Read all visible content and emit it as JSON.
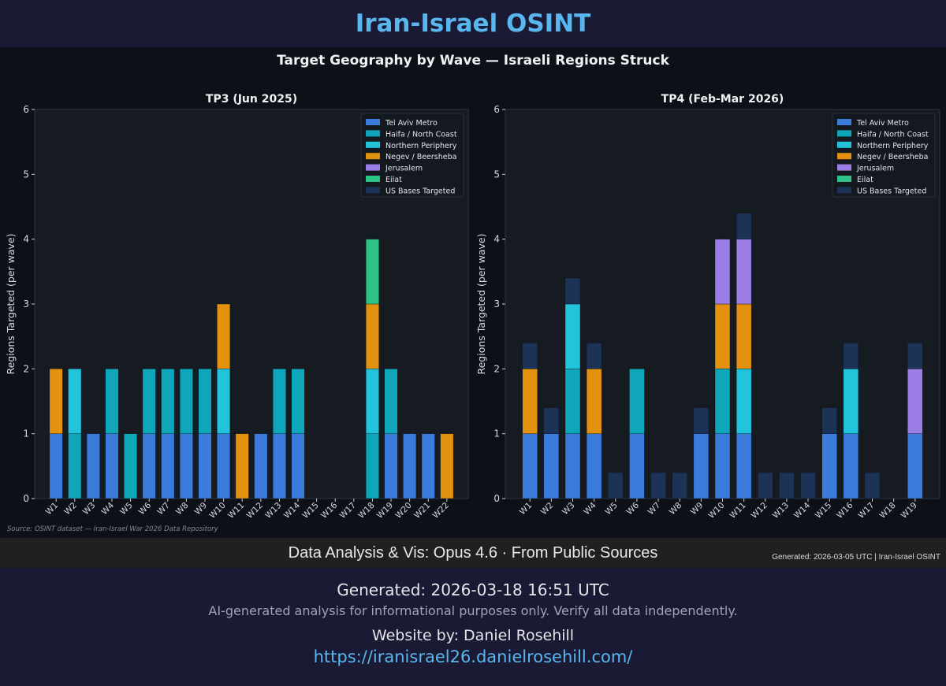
{
  "site_title": "Iran-Israel OSINT",
  "chart_data": {
    "type": "bar",
    "stacked": true,
    "suptitle": "Target Geography by Wave — Israeli Regions Struck",
    "ylabel": "Regions Targeted (per wave)",
    "ylim": [
      0,
      6
    ],
    "yticks": [
      "0",
      "1",
      "2",
      "3",
      "4",
      "5",
      "6"
    ],
    "source": "Source: OSINT dataset — Iran-Israel War 2026 Data Repository",
    "legend_position": "top-right",
    "legend": [
      {
        "name": "Tel Aviv Metro",
        "color": "#3a7bdc"
      },
      {
        "name": "Haifa / North Coast",
        "color": "#0fa6ba"
      },
      {
        "name": "Northern Periphery",
        "color": "#22c4dc"
      },
      {
        "name": "Negev / Beersheba",
        "color": "#e2920f"
      },
      {
        "name": "Jerusalem",
        "color": "#9b7ee6"
      },
      {
        "name": "Eilat",
        "color": "#2ec287"
      },
      {
        "name": "US Bases Targeted",
        "color": "#1c3357"
      }
    ],
    "panels": [
      {
        "title": "TP3 (Jun 2025)",
        "categories": [
          "W1",
          "W2",
          "W3",
          "W4",
          "W5",
          "W6",
          "W7",
          "W8",
          "W9",
          "W10",
          "W11",
          "W12",
          "W13",
          "W14",
          "W15",
          "W16",
          "W17",
          "W18",
          "W19",
          "W20",
          "W21",
          "W22"
        ],
        "series": [
          {
            "name": "Tel Aviv Metro",
            "values": [
              1,
              0,
              1,
              1,
              0,
              1,
              1,
              1,
              1,
              1,
              0,
              1,
              1,
              1,
              0,
              0,
              0,
              0,
              1,
              1,
              1,
              0
            ]
          },
          {
            "name": "Haifa / North Coast",
            "values": [
              0,
              1,
              0,
              1,
              1,
              1,
              1,
              1,
              1,
              0,
              0,
              0,
              1,
              1,
              0,
              0,
              0,
              1,
              1,
              0,
              0,
              0
            ]
          },
          {
            "name": "Northern Periphery",
            "values": [
              0,
              1,
              0,
              0,
              0,
              0,
              0,
              0,
              0,
              1,
              0,
              0,
              0,
              0,
              0,
              0,
              0,
              1,
              0,
              0,
              0,
              0
            ]
          },
          {
            "name": "Negev / Beersheba",
            "values": [
              1,
              0,
              0,
              0,
              0,
              0,
              0,
              0,
              0,
              1,
              1,
              0,
              0,
              0,
              0,
              0,
              0,
              1,
              0,
              0,
              0,
              1
            ]
          },
          {
            "name": "Jerusalem",
            "values": [
              0,
              0,
              0,
              0,
              0,
              0,
              0,
              0,
              0,
              0,
              0,
              0,
              0,
              0,
              0,
              0,
              0,
              0,
              0,
              0,
              0,
              0
            ]
          },
          {
            "name": "Eilat",
            "values": [
              0,
              0,
              0,
              0,
              0,
              0,
              0,
              0,
              0,
              0,
              0,
              0,
              0,
              0,
              0,
              0,
              0,
              1,
              0,
              0,
              0,
              0
            ]
          },
          {
            "name": "US Bases Targeted",
            "values": [
              0,
              0,
              0,
              0,
              0,
              0,
              0,
              0,
              0,
              0,
              0,
              0,
              0,
              0,
              0,
              0,
              0,
              0,
              0,
              0,
              0,
              0
            ]
          }
        ]
      },
      {
        "title": "TP4 (Feb-Mar 2026)",
        "categories": [
          "W1",
          "W2",
          "W3",
          "W4",
          "W5",
          "W6",
          "W7",
          "W8",
          "W9",
          "W10",
          "W11",
          "W12",
          "W13",
          "W14",
          "W15",
          "W16",
          "W17",
          "W18",
          "W19"
        ],
        "series": [
          {
            "name": "Tel Aviv Metro",
            "values": [
              1,
              1,
              1,
              1,
              0,
              1,
              0,
              0,
              1,
              1,
              1,
              0,
              0,
              0,
              1,
              1,
              0,
              0,
              1
            ]
          },
          {
            "name": "Haifa / North Coast",
            "values": [
              0,
              0,
              1,
              0,
              0,
              1,
              0,
              0,
              0,
              1,
              0,
              0,
              0,
              0,
              0,
              0,
              0,
              0,
              0
            ]
          },
          {
            "name": "Northern Periphery",
            "values": [
              0,
              0,
              1,
              0,
              0,
              0,
              0,
              0,
              0,
              0,
              1,
              0,
              0,
              0,
              0,
              1,
              0,
              0,
              0
            ]
          },
          {
            "name": "Negev / Beersheba",
            "values": [
              1,
              0,
              0,
              1,
              0,
              0,
              0,
              0,
              0,
              1,
              1,
              0,
              0,
              0,
              0,
              0,
              0,
              0,
              0
            ]
          },
          {
            "name": "Jerusalem",
            "values": [
              0,
              0,
              0,
              0,
              0,
              0,
              0,
              0,
              0,
              1,
              1,
              0,
              0,
              0,
              0,
              0,
              0,
              0,
              1
            ]
          },
          {
            "name": "Eilat",
            "values": [
              0,
              0,
              0,
              0,
              0,
              0,
              0,
              0,
              0,
              0,
              0,
              0,
              0,
              0,
              0,
              0,
              0,
              0,
              0
            ]
          },
          {
            "name": "US Bases Targeted",
            "values": [
              0.4,
              0.4,
              0.4,
              0.4,
              0.4,
              0,
              0.4,
              0.4,
              0.4,
              0,
              0.4,
              0.4,
              0.4,
              0.4,
              0.4,
              0.4,
              0.4,
              0,
              0.4
            ]
          }
        ]
      }
    ]
  },
  "strip": {
    "main": "Data Analysis & Vis: Opus 4.6 · From Public Sources",
    "right": "Generated: 2026-03-05 UTC | Iran-Israel OSINT"
  },
  "footer": {
    "generated": "Generated: 2026-03-18 16:51 UTC",
    "disclaimer": "AI-generated analysis for informational purposes only. Verify all data independently.",
    "website_by": "Website by: Daniel Rosehill",
    "url": "https://iranisrael26.danielrosehill.com/"
  }
}
